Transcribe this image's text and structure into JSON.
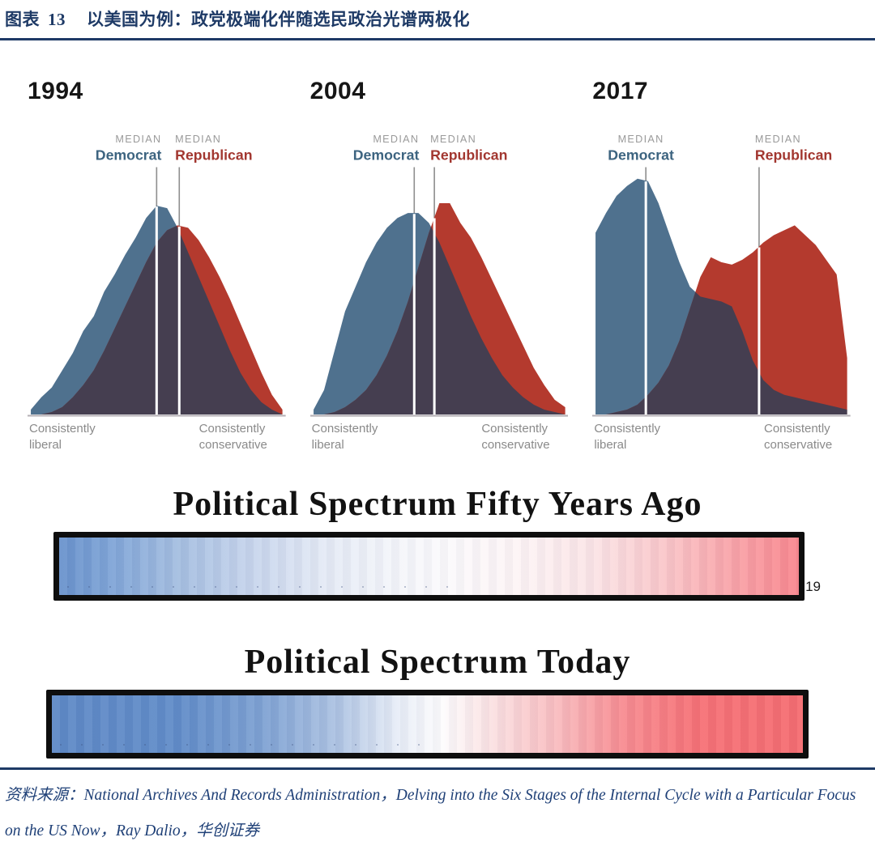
{
  "header": {
    "figure_label": "图表",
    "figure_number": "13",
    "title": "以美国为例：政党极端化伴随选民政治光谱两极化"
  },
  "colors": {
    "democrat_fill": "#4f718e",
    "republican_fill": "#b43a2e",
    "overlap_fill": "#453e50",
    "median_line_gray": "#8f8f8f",
    "median_line_white": "#ffffff",
    "baseline": "#b5b0b5",
    "header_blue": "#1e3a66",
    "source_blue": "#1f4077"
  },
  "chart_data": [
    {
      "type": "area",
      "year": "1994",
      "x_axis": "political ideology (liberal to conservative)",
      "medians": {
        "democrat": 0.5,
        "republican": 0.59
      },
      "labels": {
        "median": "MEDIAN",
        "democrat": "Democrat",
        "republican": "Republican",
        "left": "Consistently liberal",
        "right": "Consistently conservative"
      },
      "series": [
        {
          "name": "Democrat",
          "values": [
            2,
            7,
            11,
            18,
            25,
            34,
            40,
            50,
            57,
            65,
            72,
            80,
            85,
            84,
            76,
            66,
            56,
            46,
            36,
            26,
            17,
            10,
            5,
            2,
            0
          ]
        },
        {
          "name": "Republican",
          "values": [
            0,
            0,
            1,
            3,
            7,
            12,
            18,
            26,
            35,
            44,
            53,
            62,
            70,
            75,
            77,
            76,
            71,
            64,
            56,
            47,
            37,
            27,
            17,
            8,
            2
          ]
        }
      ]
    },
    {
      "type": "area",
      "year": "2004",
      "x_axis": "political ideology (liberal to conservative)",
      "medians": {
        "democrat": 0.4,
        "republican": 0.48
      },
      "labels": {
        "median": "MEDIAN",
        "democrat": "Democrat",
        "republican": "Republican",
        "left": "Consistently liberal",
        "right": "Consistently conservative"
      },
      "series": [
        {
          "name": "Democrat",
          "values": [
            2,
            10,
            26,
            42,
            52,
            62,
            70,
            76,
            80,
            82,
            82,
            78,
            70,
            60,
            50,
            40,
            31,
            23,
            16,
            11,
            7,
            4,
            2,
            1,
            0
          ]
        },
        {
          "name": "Republican",
          "values": [
            0,
            0,
            1,
            3,
            6,
            10,
            16,
            24,
            34,
            46,
            60,
            74,
            86,
            86,
            78,
            72,
            64,
            55,
            46,
            37,
            28,
            19,
            12,
            6,
            3
          ]
        }
      ]
    },
    {
      "type": "area",
      "year": "2017",
      "x_axis": "political ideology (liberal to conservative)",
      "medians": {
        "democrat": 0.2,
        "republican": 0.65
      },
      "labels": {
        "median": "MEDIAN",
        "democrat": "Democrat",
        "republican": "Republican",
        "left": "Consistently liberal",
        "right": "Consistently conservative"
      },
      "series": [
        {
          "name": "Democrat",
          "values": [
            74,
            82,
            89,
            93,
            96,
            95,
            86,
            74,
            62,
            52,
            48,
            47,
            46,
            44,
            34,
            22,
            14,
            10,
            8,
            7,
            6,
            5,
            4,
            3,
            2
          ]
        },
        {
          "name": "Republican",
          "values": [
            0,
            0,
            1,
            2,
            4,
            8,
            13,
            20,
            30,
            43,
            56,
            64,
            62,
            61,
            63,
            66,
            70,
            73,
            75,
            77,
            73,
            69,
            63,
            57,
            23
          ]
        }
      ]
    }
  ],
  "spectrum_bars": [
    {
      "title": "Political Spectrum Fifty Years Ago",
      "annotation": "19",
      "gradient": [
        {
          "pos": 0,
          "color": "#6690cb"
        },
        {
          "pos": 0.07,
          "color": "#7da3d6"
        },
        {
          "pos": 0.16,
          "color": "#a3bde0"
        },
        {
          "pos": 0.26,
          "color": "#c6d4ec"
        },
        {
          "pos": 0.36,
          "color": "#e4eaf5"
        },
        {
          "pos": 0.45,
          "color": "#f3f5fa"
        },
        {
          "pos": 0.52,
          "color": "#fbfafc"
        },
        {
          "pos": 0.62,
          "color": "#fdf4f5"
        },
        {
          "pos": 0.72,
          "color": "#fbe4e6"
        },
        {
          "pos": 0.82,
          "color": "#fac5c8"
        },
        {
          "pos": 0.91,
          "color": "#f9a2a7"
        },
        {
          "pos": 1,
          "color": "#f9858c"
        }
      ]
    },
    {
      "title": "Political Spectrum Today",
      "annotation": "",
      "gradient": [
        {
          "pos": 0,
          "color": "#5b87c5"
        },
        {
          "pos": 0.17,
          "color": "#5e8ac7"
        },
        {
          "pos": 0.28,
          "color": "#7ca0d2"
        },
        {
          "pos": 0.38,
          "color": "#acc2e2"
        },
        {
          "pos": 0.46,
          "color": "#e7edf7"
        },
        {
          "pos": 0.52,
          "color": "#fdfcfd"
        },
        {
          "pos": 0.58,
          "color": "#fbe3e4"
        },
        {
          "pos": 0.67,
          "color": "#f9bcbf"
        },
        {
          "pos": 0.76,
          "color": "#f78a8f"
        },
        {
          "pos": 0.86,
          "color": "#f66e73"
        },
        {
          "pos": 1,
          "color": "#f56a6e"
        }
      ]
    }
  ],
  "footer": {
    "source": "资料来源：National Archives And Records Administration，Delving into the Six Stages of the Internal Cycle with a Particular Focus on the US Now，Ray Dalio，华创证券"
  }
}
